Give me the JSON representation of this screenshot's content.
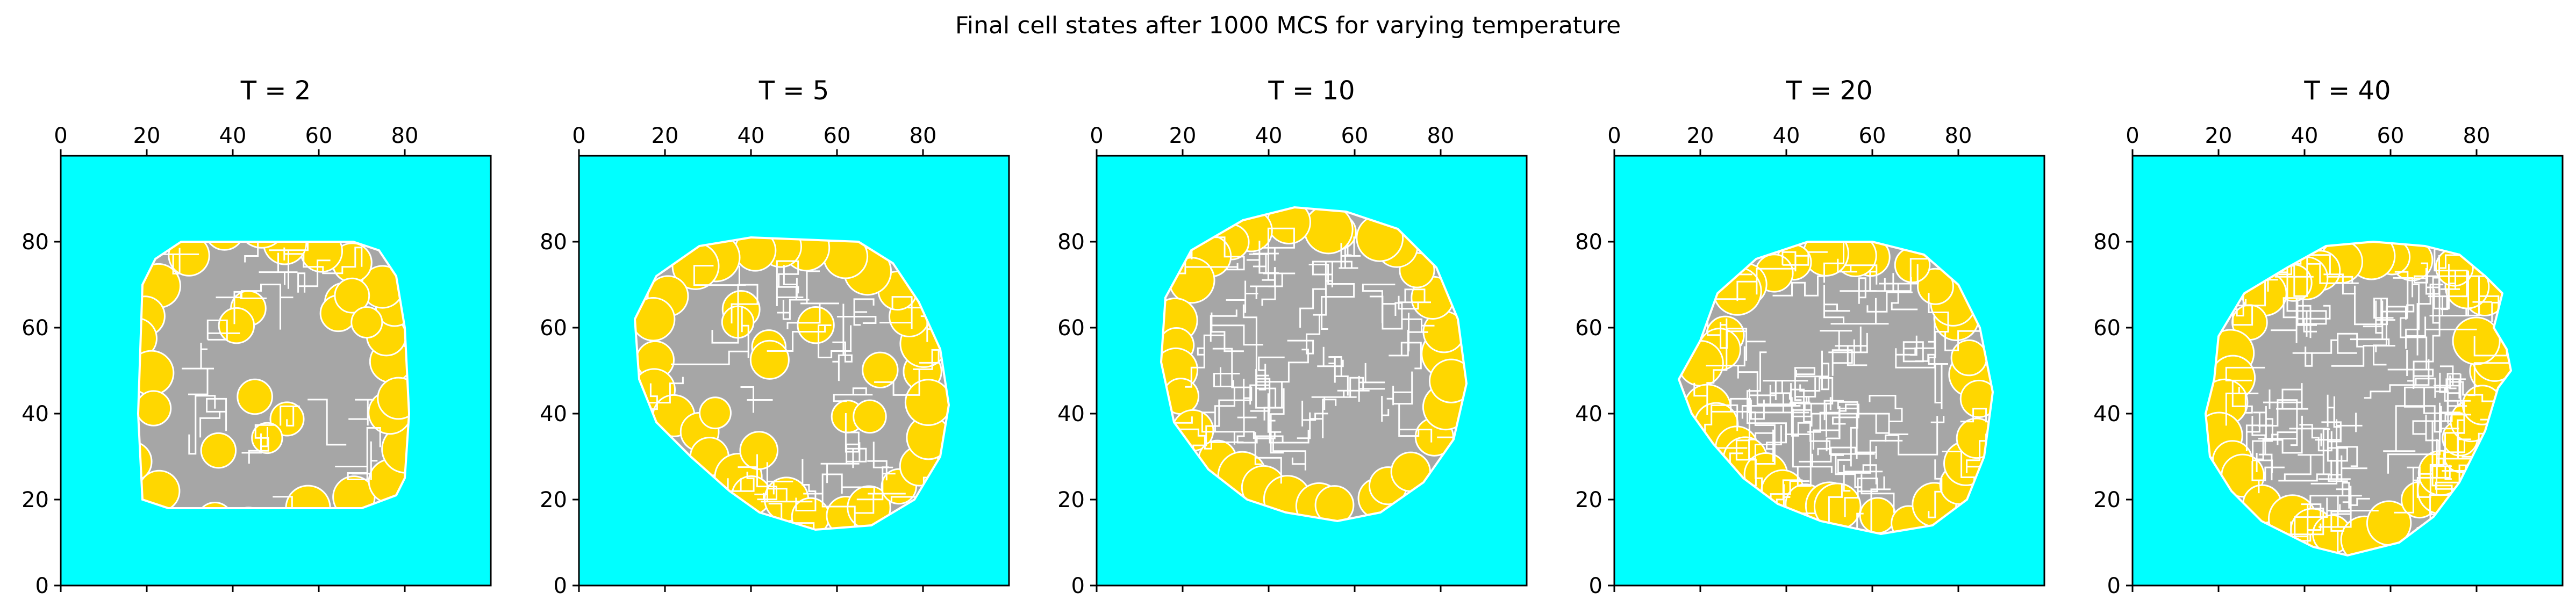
{
  "figure": {
    "title": "Final cell states after 1000 MCS for varying temperature"
  },
  "colors": {
    "medium": "#00ffff",
    "cell_type_a": "#a6a6a6",
    "cell_type_b": "#ffd700",
    "cell_border": "#ffffff"
  },
  "chart_data": [
    {
      "type": "heatmap",
      "title": "T = 2",
      "x_ticks": [
        0,
        20,
        40,
        60,
        80
      ],
      "y_ticks": [
        0,
        20,
        40,
        60,
        80
      ],
      "xlim": [
        0,
        100
      ],
      "ylim": [
        100,
        0
      ],
      "x_axis_position": "top",
      "grid": false,
      "legend": "none",
      "cluster_boundary": [
        [
          19,
          20
        ],
        [
          25,
          18
        ],
        [
          70,
          18
        ],
        [
          78,
          21
        ],
        [
          80,
          25
        ],
        [
          81,
          40
        ],
        [
          80,
          60
        ],
        [
          78,
          72
        ],
        [
          74,
          78
        ],
        [
          68,
          80
        ],
        [
          28,
          80
        ],
        [
          22,
          76
        ],
        [
          19,
          70
        ],
        [
          18,
          40
        ]
      ]
    },
    {
      "type": "heatmap",
      "title": "T = 5",
      "x_ticks": [
        0,
        20,
        40,
        60,
        80
      ],
      "y_ticks": [
        0,
        20,
        40,
        60,
        80
      ],
      "xlim": [
        0,
        100
      ],
      "ylim": [
        100,
        0
      ],
      "x_axis_position": "top",
      "grid": false,
      "legend": "none",
      "cluster_boundary": [
        [
          42,
          17
        ],
        [
          55,
          13
        ],
        [
          68,
          14
        ],
        [
          78,
          20
        ],
        [
          84,
          30
        ],
        [
          86,
          42
        ],
        [
          84,
          55
        ],
        [
          79,
          66
        ],
        [
          73,
          75
        ],
        [
          65,
          80
        ],
        [
          40,
          81
        ],
        [
          28,
          79
        ],
        [
          18,
          72
        ],
        [
          13,
          62
        ],
        [
          14,
          48
        ],
        [
          18,
          38
        ],
        [
          26,
          30
        ],
        [
          35,
          22
        ]
      ]
    },
    {
      "type": "heatmap",
      "title": "T = 10",
      "x_ticks": [
        0,
        20,
        40,
        60,
        80
      ],
      "y_ticks": [
        0,
        20,
        40,
        60,
        80
      ],
      "xlim": [
        0,
        100
      ],
      "ylim": [
        100,
        0
      ],
      "x_axis_position": "top",
      "grid": false,
      "legend": "none",
      "cluster_boundary": [
        [
          44,
          17
        ],
        [
          56,
          15
        ],
        [
          66,
          17
        ],
        [
          76,
          24
        ],
        [
          83,
          34
        ],
        [
          86,
          47
        ],
        [
          84,
          62
        ],
        [
          79,
          74
        ],
        [
          70,
          83
        ],
        [
          58,
          87
        ],
        [
          46,
          88
        ],
        [
          34,
          85
        ],
        [
          22,
          78
        ],
        [
          16,
          67
        ],
        [
          15,
          52
        ],
        [
          18,
          38
        ],
        [
          26,
          27
        ],
        [
          35,
          20
        ]
      ]
    },
    {
      "type": "heatmap",
      "title": "T = 20",
      "x_ticks": [
        0,
        20,
        40,
        60,
        80
      ],
      "y_ticks": [
        0,
        20,
        40,
        60,
        80
      ],
      "xlim": [
        0,
        100
      ],
      "ylim": [
        100,
        0
      ],
      "x_axis_position": "top",
      "grid": false,
      "legend": "none",
      "cluster_boundary": [
        [
          38,
          19
        ],
        [
          48,
          15
        ],
        [
          62,
          12
        ],
        [
          74,
          14
        ],
        [
          82,
          20
        ],
        [
          86,
          30
        ],
        [
          88,
          45
        ],
        [
          85,
          60
        ],
        [
          80,
          70
        ],
        [
          72,
          77
        ],
        [
          60,
          80
        ],
        [
          45,
          80
        ],
        [
          33,
          76
        ],
        [
          24,
          68
        ],
        [
          20,
          57
        ],
        [
          15,
          48
        ],
        [
          18,
          40
        ],
        [
          23,
          33
        ],
        [
          30,
          25
        ]
      ]
    },
    {
      "type": "heatmap",
      "title": "T = 40",
      "x_ticks": [
        0,
        20,
        40,
        60,
        80
      ],
      "y_ticks": [
        0,
        20,
        40,
        60,
        80
      ],
      "xlim": [
        0,
        100
      ],
      "ylim": [
        100,
        0
      ],
      "x_axis_position": "top",
      "grid": false,
      "legend": "none",
      "cluster_boundary": [
        [
          30,
          15
        ],
        [
          42,
          9
        ],
        [
          50,
          7
        ],
        [
          62,
          10
        ],
        [
          70,
          16
        ],
        [
          76,
          24
        ],
        [
          82,
          36
        ],
        [
          85,
          46
        ],
        [
          88,
          50
        ],
        [
          87,
          55
        ],
        [
          84,
          60
        ],
        [
          86,
          68
        ],
        [
          82,
          72
        ],
        [
          76,
          77
        ],
        [
          68,
          79
        ],
        [
          56,
          80
        ],
        [
          45,
          79
        ],
        [
          36,
          74
        ],
        [
          26,
          68
        ],
        [
          20,
          58
        ],
        [
          19,
          48
        ],
        [
          17,
          40
        ],
        [
          18,
          30
        ],
        [
          23,
          22
        ]
      ]
    }
  ]
}
